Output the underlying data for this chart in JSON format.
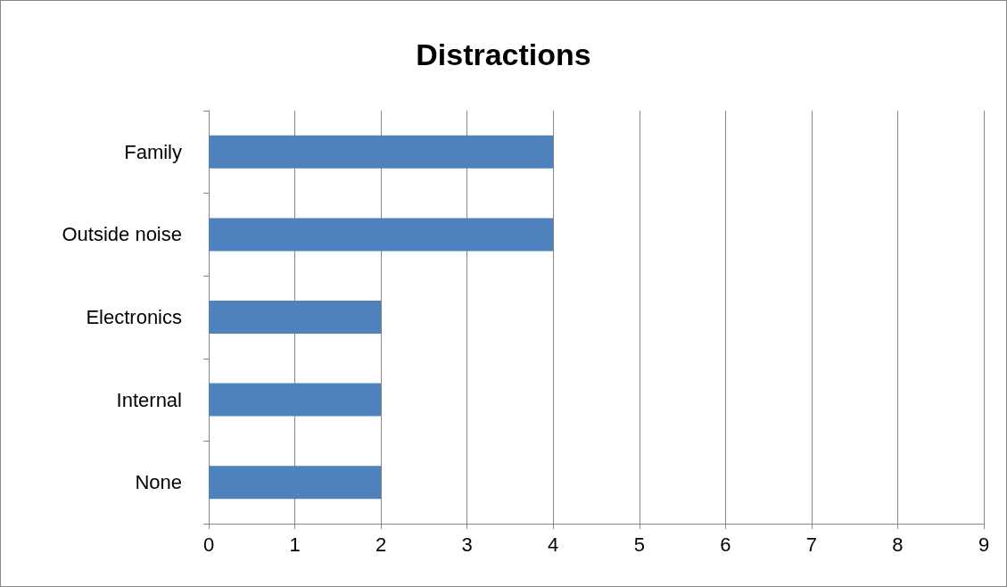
{
  "chart_data": {
    "type": "bar",
    "title": "Distractions",
    "orientation": "horizontal",
    "categories": [
      "Family",
      "Outside noise",
      "Electronics",
      "Internal",
      "None"
    ],
    "values": [
      4,
      4,
      2,
      2,
      2
    ],
    "color": "#4f81bd",
    "xlim": [
      0,
      9
    ],
    "xticks": [
      0,
      1,
      2,
      3,
      4,
      5,
      6,
      7,
      8,
      9
    ],
    "grid": "x"
  }
}
